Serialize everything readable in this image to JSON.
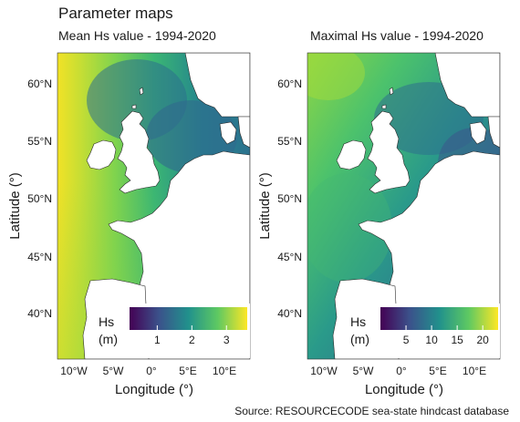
{
  "figure": {
    "title": "Parameter maps",
    "source": "Source: RESOURCECODE sea-state hindcast database"
  },
  "panels": [
    {
      "subtitle": "Mean Hs value - 1994-2020",
      "xlabel": "Longitude (°)",
      "ylabel": "Latitude (°)",
      "x_ticks": [
        "10°W",
        "5°W",
        "0°",
        "5°E",
        "10°E"
      ],
      "y_ticks": [
        "40°N",
        "45°N",
        "50°N",
        "55°N",
        "60°N"
      ],
      "legend": {
        "title_line1": "Hs",
        "title_line2": "(m)",
        "ticks": [
          "1",
          "2",
          "3"
        ],
        "range": [
          0.2,
          3.6
        ]
      },
      "colormap": "viridis"
    },
    {
      "subtitle": "Maximal Hs value - 1994-2020",
      "xlabel": "Longitude (°)",
      "ylabel": "Latitude (°)",
      "x_ticks": [
        "10°W",
        "5°W",
        "0°",
        "5°E",
        "10°E"
      ],
      "y_ticks": [
        "40°N",
        "45°N",
        "50°N",
        "55°N",
        "60°N"
      ],
      "legend": {
        "title_line1": "Hs",
        "title_line2": "(m)",
        "ticks": [
          "5",
          "10",
          "15",
          "20"
        ],
        "range": [
          0,
          23
        ]
      },
      "colormap": "viridis"
    }
  ],
  "map_extent": {
    "lon": [
      -13,
      14
    ],
    "lat": [
      36,
      62.5
    ]
  },
  "colors": {
    "viridis_dark": "#440154",
    "viridis_blue": "#31688e",
    "viridis_teal": "#21918c",
    "viridis_green": "#5ec962",
    "viridis_yellow": "#fde725",
    "land": "#ffffff"
  }
}
